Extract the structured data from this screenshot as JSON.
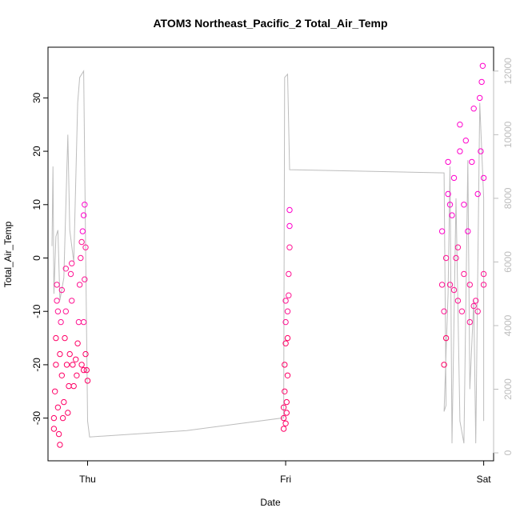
{
  "chart_data": {
    "type": "scatter",
    "title": "ATOM3 Northeast_Pacific_2 Total_Air_Temp",
    "xlabel": "Date",
    "ylabel": "Total_Air_Temp",
    "x_ticks": [
      "Thu",
      "Fri",
      "Sat"
    ],
    "y_ticks": [
      -30,
      -20,
      -10,
      0,
      10,
      20,
      30
    ],
    "y2_ticks": [
      0,
      2000,
      4000,
      6000,
      8000,
      10000,
      12000
    ],
    "xlim_days": [
      -0.2,
      2.05
    ],
    "ylim": [
      -38,
      39.5
    ],
    "y2lim": [
      -250,
      12750
    ],
    "grid": false,
    "colors": {
      "point": "#ff1493",
      "point_low": "#ff0066",
      "point_high": "#ff00cc",
      "secondary_line": "#bdbdbd",
      "axis": "#000000"
    },
    "series": [
      {
        "kind": "points",
        "y_axis": "left",
        "points": [
          [
            -0.17,
            -30
          ],
          [
            -0.17,
            -32
          ],
          [
            -0.165,
            -25
          ],
          [
            -0.16,
            -15
          ],
          [
            -0.16,
            -20
          ],
          [
            -0.155,
            -8
          ],
          [
            -0.155,
            -5
          ],
          [
            -0.15,
            -10
          ],
          [
            -0.15,
            -28
          ],
          [
            -0.145,
            -33
          ],
          [
            -0.14,
            -35
          ],
          [
            -0.14,
            -18
          ],
          [
            -0.135,
            -12
          ],
          [
            -0.13,
            -6
          ],
          [
            -0.13,
            -22
          ],
          [
            -0.125,
            -30
          ],
          [
            -0.12,
            -27
          ],
          [
            -0.115,
            -15
          ],
          [
            -0.11,
            -10
          ],
          [
            -0.11,
            -2
          ],
          [
            -0.105,
            -20
          ],
          [
            -0.1,
            -29
          ],
          [
            -0.095,
            -24
          ],
          [
            -0.09,
            -18
          ],
          [
            -0.085,
            -3
          ],
          [
            -0.08,
            -1
          ],
          [
            -0.08,
            -8
          ],
          [
            -0.075,
            -20
          ],
          [
            -0.07,
            -24
          ],
          [
            -0.06,
            -19
          ],
          [
            -0.055,
            -22
          ],
          [
            -0.05,
            -16
          ],
          [
            -0.045,
            -12
          ],
          [
            -0.04,
            -5
          ],
          [
            -0.035,
            0
          ],
          [
            -0.03,
            3
          ],
          [
            -0.025,
            5
          ],
          [
            -0.02,
            8
          ],
          [
            -0.015,
            10
          ],
          [
            -0.01,
            -18
          ],
          [
            -0.005,
            -21
          ],
          [
            0.0,
            -23
          ],
          [
            -0.02,
            -21
          ],
          [
            -0.03,
            -20
          ],
          [
            -0.02,
            -12
          ],
          [
            -0.015,
            -4
          ],
          [
            -0.01,
            2
          ]
        ]
      },
      {
        "kind": "points",
        "y_axis": "left",
        "points": [
          [
            0.99,
            -30
          ],
          [
            0.99,
            -28
          ],
          [
            0.995,
            -25
          ],
          [
            0.995,
            -20
          ],
          [
            1.0,
            -16
          ],
          [
            1.0,
            -12
          ],
          [
            1.0,
            -8
          ],
          [
            1.005,
            -29
          ],
          [
            1.005,
            -27
          ],
          [
            1.01,
            -22
          ],
          [
            1.01,
            -15
          ],
          [
            1.01,
            -10
          ],
          [
            1.015,
            -7
          ],
          [
            1.015,
            -3
          ],
          [
            1.02,
            2
          ],
          [
            1.02,
            6
          ],
          [
            1.02,
            9
          ],
          [
            0.99,
            -32
          ],
          [
            1.0,
            -31
          ]
        ]
      },
      {
        "kind": "points",
        "y_axis": "left",
        "points": [
          [
            1.79,
            -5
          ],
          [
            1.79,
            5
          ],
          [
            1.8,
            -10
          ],
          [
            1.8,
            -20
          ],
          [
            1.81,
            -15
          ],
          [
            1.81,
            0
          ],
          [
            1.82,
            12
          ],
          [
            1.82,
            18
          ],
          [
            1.83,
            -5
          ],
          [
            1.84,
            8
          ],
          [
            1.85,
            15
          ],
          [
            1.86,
            0
          ],
          [
            1.87,
            -8
          ],
          [
            1.88,
            20
          ],
          [
            1.88,
            25
          ],
          [
            1.89,
            -10
          ],
          [
            1.9,
            10
          ],
          [
            1.91,
            22
          ],
          [
            1.92,
            5
          ],
          [
            1.93,
            -12
          ],
          [
            1.94,
            18
          ],
          [
            1.95,
            28
          ],
          [
            1.96,
            -8
          ],
          [
            1.97,
            12
          ],
          [
            1.98,
            30
          ],
          [
            1.985,
            20
          ],
          [
            1.99,
            33
          ],
          [
            1.995,
            36
          ],
          [
            2.0,
            15
          ],
          [
            2.0,
            -5
          ],
          [
            2.0,
            -3
          ],
          [
            1.97,
            -10
          ],
          [
            1.95,
            -9
          ],
          [
            1.93,
            -5
          ],
          [
            1.9,
            -3
          ],
          [
            1.87,
            2
          ],
          [
            1.85,
            -6
          ],
          [
            1.83,
            10
          ]
        ]
      },
      {
        "kind": "line",
        "y_axis": "right",
        "points": [
          [
            -0.18,
            6500
          ],
          [
            -0.175,
            9000
          ],
          [
            -0.17,
            5000
          ],
          [
            -0.16,
            6800
          ],
          [
            -0.15,
            7000
          ],
          [
            -0.14,
            4800
          ],
          [
            -0.12,
            5500
          ],
          [
            -0.1,
            10000
          ],
          [
            -0.09,
            7000
          ],
          [
            -0.07,
            6000
          ],
          [
            -0.05,
            11000
          ],
          [
            -0.04,
            11800
          ],
          [
            -0.03,
            11900
          ],
          [
            -0.02,
            12000
          ],
          [
            -0.01,
            6500
          ],
          [
            0.0,
            1000
          ],
          [
            0.01,
            500
          ],
          [
            0.5,
            700
          ],
          [
            0.99,
            1100
          ],
          [
            0.995,
            11800
          ],
          [
            1.01,
            11900
          ],
          [
            1.02,
            8900
          ],
          [
            1.8,
            8800
          ],
          [
            1.81,
            1500
          ],
          [
            1.8,
            1300
          ],
          [
            1.82,
            5000
          ],
          [
            1.83,
            9000
          ],
          [
            1.84,
            300
          ],
          [
            1.86,
            8000
          ],
          [
            1.88,
            1000
          ],
          [
            1.9,
            300
          ],
          [
            1.92,
            9200
          ],
          [
            1.93,
            2000
          ],
          [
            1.95,
            4800
          ],
          [
            1.96,
            300
          ],
          [
            1.98,
            11000
          ],
          [
            2.0,
            8000
          ],
          [
            2.0,
            2000
          ],
          [
            2.0,
            1000
          ]
        ]
      }
    ]
  }
}
